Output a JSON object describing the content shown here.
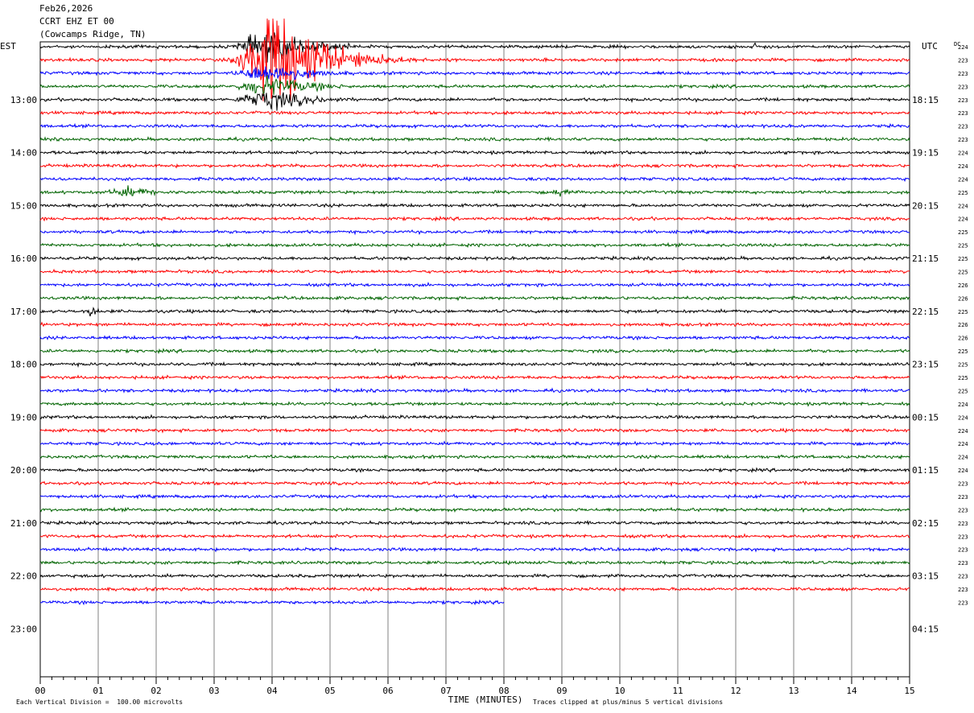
{
  "header": {
    "date": "Feb26,2026",
    "station": "CCRT EHZ ET 00",
    "location": "(Cowcamps Ridge, TN)"
  },
  "left_timezone": "EST",
  "right_timezone": "UTC",
  "dc_label": "DC",
  "x_axis_label": "TIME (MINUTES)",
  "footer": {
    "scale_note": "Each Vertical Division =  100.00 microvolts",
    "clip_note": "Traces clipped at plus/minus 5 vertical divisions"
  },
  "colors": {
    "trace_cycle": [
      "#000000",
      "#ff0000",
      "#0000ff",
      "#006400"
    ],
    "grid": "#808080"
  },
  "chart_data": {
    "type": "line",
    "title": "",
    "xlabel": "TIME (MINUTES)",
    "x_range": [
      0,
      15
    ],
    "x_ticks": [
      "00",
      "01",
      "02",
      "03",
      "04",
      "05",
      "06",
      "07",
      "08",
      "09",
      "10",
      "11",
      "12",
      "13",
      "14",
      "15"
    ],
    "x_minor_ticks_per_minute": 5,
    "rows_per_hour": 4,
    "row_minutes": 15,
    "total_rows": 48,
    "recorded_rows": 43,
    "last_row_end_minute": 8,
    "left_hour_labels": [
      "13:00",
      "14:00",
      "15:00",
      "16:00",
      "17:00",
      "18:00",
      "19:00",
      "20:00",
      "21:00",
      "22:00",
      "23:00"
    ],
    "right_hour_labels": [
      "18:15",
      "19:15",
      "20:15",
      "21:15",
      "22:15",
      "23:15",
      "00:15",
      "01:15",
      "02:15",
      "03:15",
      "04:15"
    ],
    "hour_label_start_row": 4,
    "dc_offsets": [
      224,
      223,
      223,
      223,
      223,
      223,
      223,
      223,
      224,
      224,
      224,
      225,
      224,
      224,
      225,
      225,
      225,
      225,
      226,
      226,
      225,
      226,
      226,
      225,
      225,
      225,
      225,
      224,
      224,
      224,
      224,
      224,
      224,
      223,
      223,
      223,
      223,
      223,
      223,
      223,
      223,
      223,
      223
    ],
    "events": [
      {
        "rows": [
          0,
          1,
          2,
          3,
          4
        ],
        "start_minute": 3.2,
        "peak_minute": 3.95,
        "end_minute": 6.8,
        "note": "large clipped event"
      },
      {
        "rows": [
          20
        ],
        "start_minute": 0.7,
        "peak_minute": 0.85,
        "end_minute": 1.0,
        "note": "small burst"
      },
      {
        "rows": [
          11
        ],
        "start_minute": 0.9,
        "peak_minute": 1.5,
        "end_minute": 2.0,
        "note": "noise burst"
      },
      {
        "rows": [
          11
        ],
        "start_minute": 8.8,
        "peak_minute": 8.95,
        "end_minute": 9.1,
        "note": "small burst"
      },
      {
        "rows": [
          0
        ],
        "start_minute": 12.3,
        "peak_minute": 12.3,
        "end_minute": 12.35,
        "note": "spike"
      }
    ]
  }
}
